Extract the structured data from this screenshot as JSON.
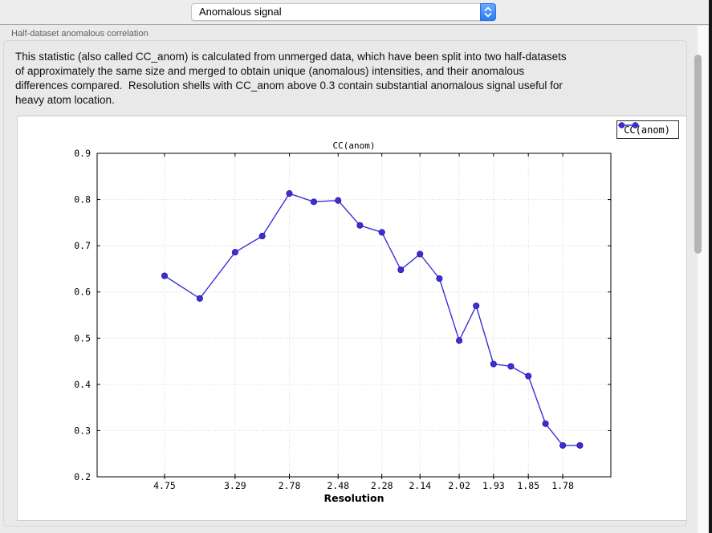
{
  "header": {
    "selector_value": "Anomalous signal"
  },
  "section": {
    "label": "Half-dataset anomalous correlation",
    "description_lines": [
      "This statistic (also called CC_anom) is calculated from unmerged data, which have been split into two half-datasets",
      "of approximately the same size and merged to obtain unique (anomalous) intensities, and their anomalous",
      "differences compared.  Resolution shells with CC_anom above 0.3 contain substantial anomalous signal useful for",
      "heavy atom location."
    ]
  },
  "chart_data": {
    "type": "line",
    "title": "CC(anom)",
    "xlabel": "Resolution",
    "ylabel": "",
    "legend": [
      "CC(anom)"
    ],
    "legend_position": "upper-right of figure, outside plot",
    "grid": true,
    "ylim": [
      0.2,
      0.9
    ],
    "y_ticks": [
      "0.2",
      "0.3",
      "0.4",
      "0.5",
      "0.6",
      "0.7",
      "0.8",
      "0.9"
    ],
    "x_axis_note": "resolution in Angstrom, linear in 1/d^2, decreasing d to the right",
    "s_range": [
      -0.0016,
      0.3484
    ],
    "x_ticks": [
      {
        "d": 4.75,
        "label": "4.75"
      },
      {
        "d": 3.29,
        "label": "3.29"
      },
      {
        "d": 2.78,
        "label": "2.78"
      },
      {
        "d": 2.48,
        "label": "2.48"
      },
      {
        "d": 2.28,
        "label": "2.28"
      },
      {
        "d": 2.14,
        "label": "2.14"
      },
      {
        "d": 2.02,
        "label": "2.02"
      },
      {
        "d": 1.93,
        "label": "1.93"
      },
      {
        "d": 1.85,
        "label": "1.85"
      },
      {
        "d": 1.78,
        "label": "1.78"
      }
    ],
    "series": [
      {
        "name": "CC(anom)",
        "color": "#3c2ed6",
        "marker_edge": "#1f128f",
        "points": [
          [
            4.75,
            0.635
          ],
          [
            3.825,
            0.586
          ],
          [
            3.29,
            0.686
          ],
          [
            3.003,
            0.721
          ],
          [
            2.78,
            0.813
          ],
          [
            2.617,
            0.795
          ],
          [
            2.48,
            0.798
          ],
          [
            2.374,
            0.744
          ],
          [
            2.28,
            0.729
          ],
          [
            2.207,
            0.648
          ],
          [
            2.14,
            0.682
          ],
          [
            2.078,
            0.629
          ],
          [
            2.02,
            0.495
          ],
          [
            1.974,
            0.57
          ],
          [
            1.93,
            0.444
          ],
          [
            1.889,
            0.439
          ],
          [
            1.85,
            0.418
          ],
          [
            1.814,
            0.315
          ],
          [
            1.78,
            0.268
          ],
          [
            1.748,
            0.268
          ]
        ]
      }
    ]
  },
  "colors": {
    "accent_blue": "#2e7cf2",
    "plot_line": "#3c2ed6",
    "grid": "#d8d8d8"
  }
}
